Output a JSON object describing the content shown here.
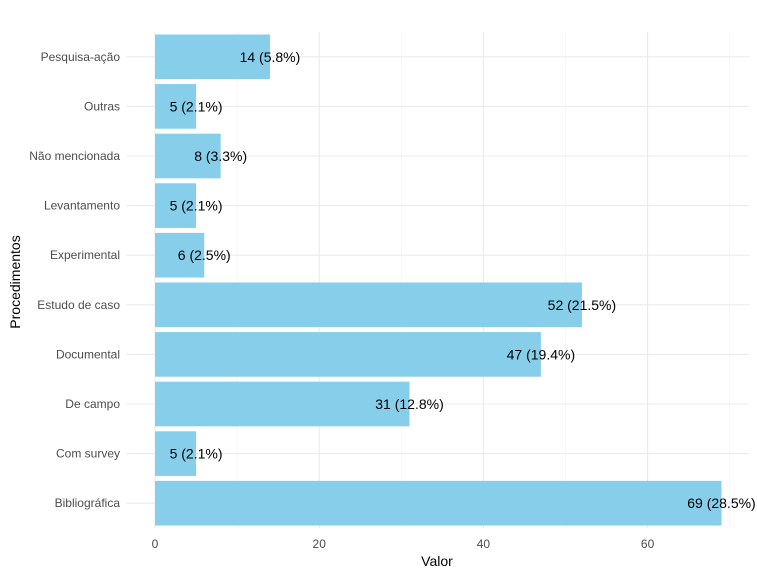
{
  "chart_data": {
    "type": "bar",
    "orientation": "horizontal",
    "xlabel": "Valor",
    "ylabel": "Procedimentos",
    "xlim": [
      0,
      72
    ],
    "x_ticks": [
      0,
      20,
      40,
      60
    ],
    "grid": true,
    "bar_color": "#87CEEB",
    "categories": [
      "Pesquisa-ação",
      "Outras",
      "Não mencionada",
      "Levantamento",
      "Experimental",
      "Estudo de caso",
      "Documental",
      "De campo",
      "Com survey",
      "Bibliográfica"
    ],
    "values": [
      14,
      5,
      8,
      5,
      6,
      52,
      47,
      31,
      5,
      69
    ],
    "data_labels": [
      "14 (5.8%)",
      "5 (2.1%)",
      "8 (3.3%)",
      "5 (2.1%)",
      "6 (2.5%)",
      "52 (21.5%)",
      "47 (19.4%)",
      "31 (12.8%)",
      "5 (2.1%)",
      "69 (28.5%)"
    ]
  }
}
